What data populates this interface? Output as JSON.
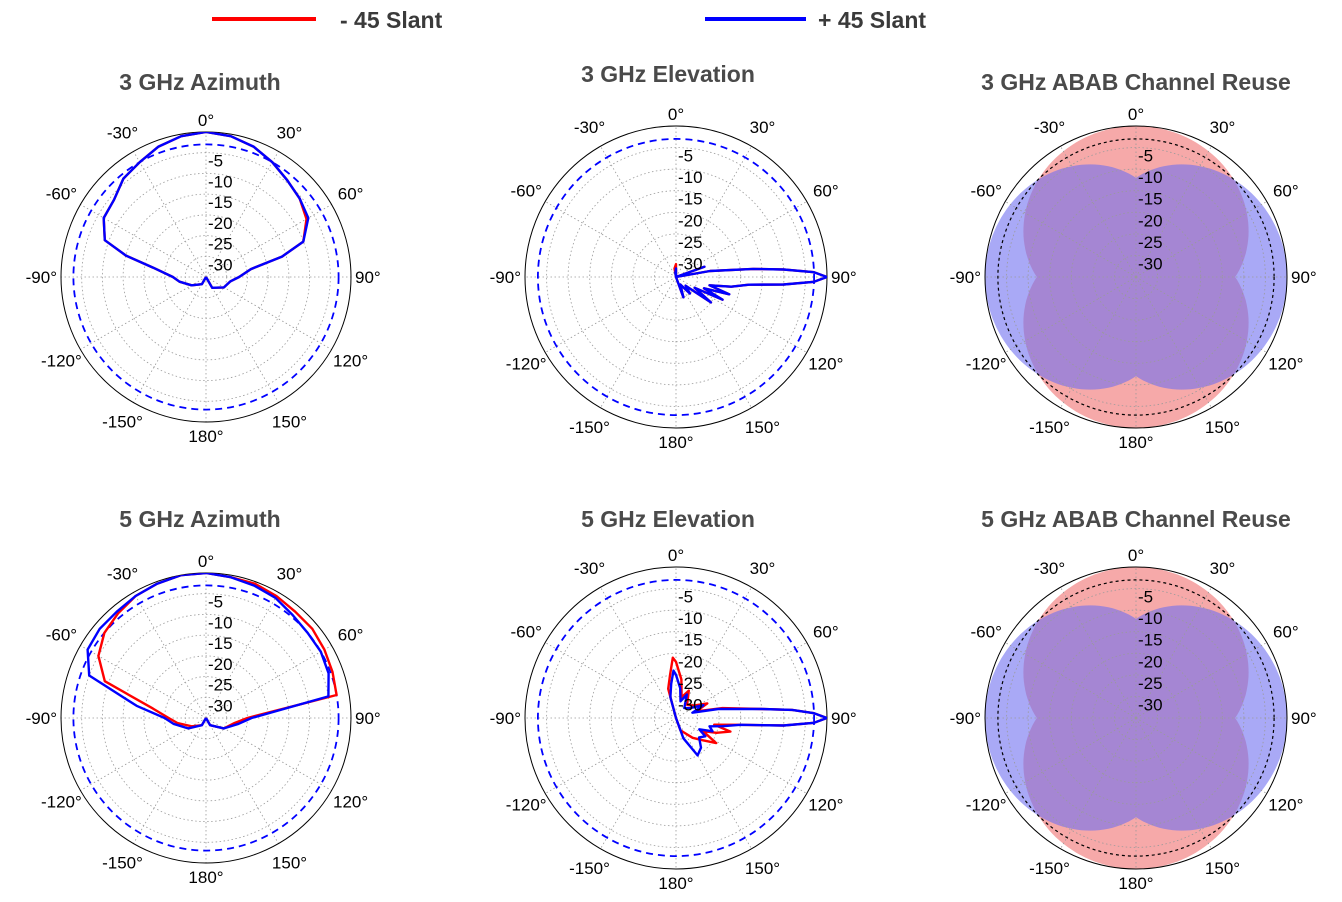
{
  "legend": [
    {
      "label": "- 45 Slant",
      "color": "#ff0000"
    },
    {
      "label": "+ 45 Slant",
      "color": "#0000ff"
    }
  ],
  "angle_tick_labels": [
    "0°",
    "30°",
    "60°",
    "90°",
    "120°",
    "150°",
    "180°",
    "-150°",
    "-120°",
    "-90°",
    "-60°",
    "-30°"
  ],
  "radial_tick_labels": [
    "-5",
    "-10",
    "-15",
    "-20",
    "-25",
    "-30"
  ],
  "colors": {
    "neg45": "#ff0000",
    "pos45": "#0000ff",
    "grid": "#9a9a9a",
    "reuse_red": "#f07070",
    "reuse_blue": "#7070f0"
  },
  "chart_data": [
    {
      "type": "polar",
      "title": "3 GHz Azimuth",
      "rlim": [
        -35,
        0
      ],
      "grid": true,
      "dashed_reference_circle": -3,
      "angles_deg": [
        -180,
        -150,
        -120,
        -100,
        -90,
        -80,
        -75,
        -70,
        -60,
        -50,
        -40,
        -30,
        -20,
        -10,
        0,
        10,
        20,
        30,
        40,
        50,
        60,
        70,
        75,
        80,
        90,
        100,
        120,
        150,
        180
      ],
      "series": [
        {
          "name": "- 45 Slant",
          "color": "#ff0000",
          "values": [
            -35,
            -33,
            -31,
            -28.5,
            -27,
            -22,
            -15,
            -9,
            -6.5,
            -6,
            -4,
            -3,
            -1.5,
            -0.5,
            0,
            -0.5,
            -1.5,
            -3,
            -4.5,
            -5.5,
            -7,
            -10,
            -16,
            -24,
            -27,
            -29,
            -30,
            -32,
            -35
          ]
        },
        {
          "name": "+ 45 Slant",
          "color": "#0000ff",
          "values": [
            -35,
            -33,
            -31,
            -28.5,
            -27,
            -22,
            -15,
            -9,
            -6.5,
            -6,
            -4,
            -3,
            -1.5,
            -0.5,
            0,
            -0.5,
            -1.5,
            -3,
            -4.5,
            -5.5,
            -6.5,
            -10,
            -16,
            -24,
            -27,
            -29,
            -30,
            -32,
            -35
          ]
        }
      ]
    },
    {
      "type": "polar",
      "title": "3 GHz Elevation",
      "rlim": [
        -35,
        0
      ],
      "grid": true,
      "dashed_reference_circle": -3,
      "angles_deg": [
        -180,
        -120,
        -60,
        -30,
        -10,
        0,
        20,
        40,
        60,
        70,
        75,
        80,
        84,
        86,
        88,
        90,
        92,
        94,
        96,
        100,
        104,
        108,
        112,
        116,
        120,
        126,
        132,
        140,
        150,
        160,
        170,
        180
      ],
      "series": [
        {
          "name": "- 45 Slant",
          "color": "#ff0000",
          "values": [
            -35,
            -35,
            -35,
            -35,
            -33,
            -32,
            -35,
            -35,
            -35,
            -28,
            -35,
            -27,
            -17,
            -10,
            -3,
            0,
            -3,
            -10,
            -18,
            -22,
            -27,
            -22,
            -28,
            -23,
            -30,
            -25,
            -32,
            -30,
            -33,
            -30,
            -35,
            -35
          ]
        },
        {
          "name": "+ 45 Slant",
          "color": "#0000ff",
          "values": [
            -35,
            -35,
            -35,
            -35,
            -34,
            -33,
            -35,
            -35,
            -35,
            -28,
            -35,
            -27,
            -17,
            -10,
            -3,
            0,
            -3,
            -10,
            -18,
            -22,
            -27,
            -22,
            -28,
            -23,
            -30,
            -25,
            -32,
            -30,
            -33,
            -30,
            -35,
            -35
          ]
        }
      ]
    },
    {
      "type": "polar",
      "title": "3 GHz ABAB Channel Reuse",
      "rlim": [
        -35,
        0
      ],
      "grid": true,
      "dashed_reference_circle": -3,
      "filled_lobes": [
        {
          "color": "#f07070",
          "center_deg": 0,
          "beamwidth_deg": 90
        },
        {
          "color": "#f07070",
          "center_deg": 180,
          "beamwidth_deg": 90
        },
        {
          "color": "#7070f0",
          "center_deg": 90,
          "beamwidth_deg": 90
        },
        {
          "color": "#7070f0",
          "center_deg": -90,
          "beamwidth_deg": 90
        }
      ]
    },
    {
      "type": "polar",
      "title": "5 GHz Azimuth",
      "rlim": [
        -35,
        0
      ],
      "grid": true,
      "dashed_reference_circle": -3,
      "angles_deg": [
        -180,
        -150,
        -120,
        -100,
        -90,
        -80,
        -70,
        -60,
        -50,
        -40,
        -30,
        -20,
        -10,
        0,
        10,
        20,
        30,
        40,
        50,
        60,
        70,
        80,
        90,
        100,
        120,
        150,
        180
      ],
      "series": [
        {
          "name": "- 45 Slant",
          "color": "#ff0000",
          "values": [
            -35,
            -33,
            -31,
            -28,
            -26,
            -22,
            -9,
            -5,
            -3,
            -2,
            -1,
            -0.5,
            0,
            0,
            -0.5,
            -0.5,
            -1,
            -1.5,
            -1.5,
            -2,
            -2.5,
            -3,
            -25,
            -28,
            -30,
            -33,
            -35
          ]
        },
        {
          "name": "+ 45 Slant",
          "color": "#0000ff",
          "values": [
            -35,
            -33,
            -30,
            -27,
            -25,
            -18,
            -5,
            -2,
            -1.5,
            -1.5,
            -1,
            -0.5,
            0,
            0,
            -0.5,
            -1,
            -1.5,
            -2.5,
            -3,
            -3,
            -3.5,
            -5,
            -24,
            -27,
            -30,
            -33,
            -35
          ]
        }
      ]
    },
    {
      "type": "polar",
      "title": "5 GHz Elevation",
      "rlim": [
        -35,
        0
      ],
      "grid": true,
      "dashed_reference_circle": -3,
      "angles_deg": [
        -180,
        -120,
        -60,
        -30,
        -15,
        -8,
        -3,
        0,
        8,
        15,
        25,
        40,
        55,
        65,
        72,
        78,
        84,
        86,
        88,
        90,
        92,
        94,
        96,
        100,
        104,
        110,
        116,
        122,
        130,
        140,
        150,
        160,
        170,
        180
      ],
      "series": [
        {
          "name": "- 45 Slant",
          "color": "#ff0000",
          "values": [
            -35,
            -35,
            -35,
            -35,
            -28,
            -25,
            -21,
            -22,
            -26,
            -30,
            -28,
            -31,
            -30,
            -27,
            -30,
            -24,
            -15,
            -8,
            -3,
            0,
            -3,
            -10,
            -20,
            -26,
            -22,
            -25,
            -28,
            -24,
            -27,
            -29,
            -31,
            -32,
            -35,
            -35
          ]
        },
        {
          "name": "+ 45 Slant",
          "color": "#0000ff",
          "values": [
            -35,
            -35,
            -35,
            -35,
            -30,
            -27,
            -24,
            -25,
            -28,
            -31,
            -29,
            -32,
            -31,
            -28,
            -31,
            -25,
            -15,
            -8,
            -3,
            0,
            -3,
            -10,
            -20,
            -24,
            -27,
            -26,
            -29,
            -27,
            -28,
            -26,
            -25,
            -30,
            -35,
            -35
          ]
        }
      ]
    },
    {
      "type": "polar",
      "title": "5 GHz ABAB Channel Reuse",
      "rlim": [
        -35,
        0
      ],
      "grid": true,
      "dashed_reference_circle": -3,
      "filled_lobes": [
        {
          "color": "#f07070",
          "center_deg": 0,
          "beamwidth_deg": 90
        },
        {
          "color": "#f07070",
          "center_deg": 180,
          "beamwidth_deg": 90
        },
        {
          "color": "#7070f0",
          "center_deg": 90,
          "beamwidth_deg": 90
        },
        {
          "color": "#7070f0",
          "center_deg": -90,
          "beamwidth_deg": 90
        }
      ]
    }
  ]
}
